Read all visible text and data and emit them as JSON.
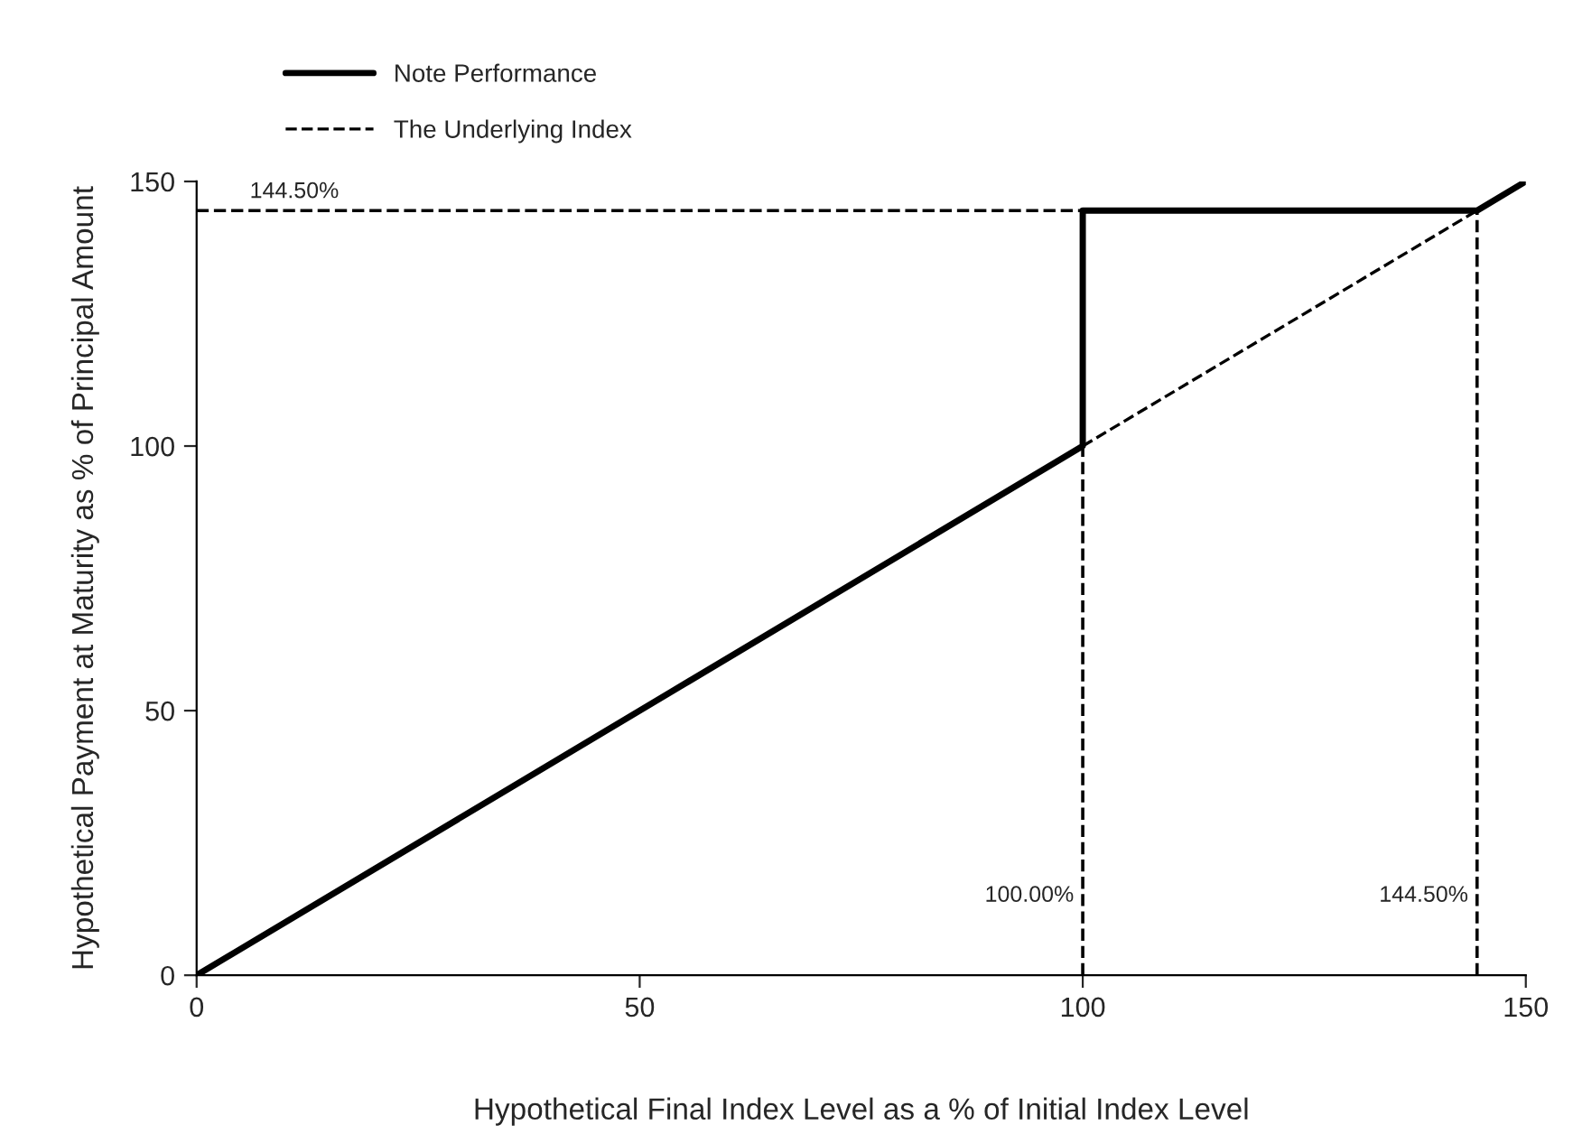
{
  "chart_data": {
    "type": "line",
    "xlabel": "Hypothetical Final Index Level as a % of Initial Index Level",
    "ylabel": "Hypothetical Payment at Maturity as % of Principal Amount",
    "series": [
      {
        "name": "Note Performance",
        "color": "#000000",
        "x": [
          0,
          100,
          100,
          144.5,
          150
        ],
        "values": [
          0,
          100,
          144.5,
          144.5,
          150
        ],
        "line_style": "solid"
      },
      {
        "name": "The Underlying Index",
        "color": "#000000",
        "x": [
          100,
          144.5
        ],
        "values": [
          100,
          144.5
        ],
        "line_style": "dashed"
      }
    ],
    "ref_lines": [
      {
        "axis": "y",
        "value": 144.5,
        "label": "144.50%",
        "color": "#000000",
        "line_style": "dashed"
      },
      {
        "axis": "x",
        "value": 100,
        "label": "100.00%",
        "color": "#000000",
        "line_style": "dashed"
      },
      {
        "axis": "x",
        "value": 144.5,
        "label": "144.50%",
        "color": "#000000",
        "line_style": "dashed"
      }
    ],
    "xlim": [
      0,
      150
    ],
    "ylim": [
      0,
      150
    ],
    "xticks": [
      0,
      50,
      100,
      150
    ],
    "yticks": [
      0,
      50,
      100,
      150
    ],
    "grid": false,
    "legend": "top",
    "marker": "none"
  }
}
